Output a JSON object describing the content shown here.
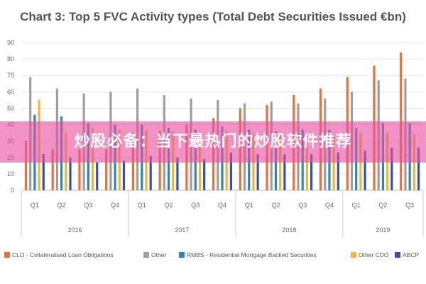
{
  "chart_data": {
    "type": "bar",
    "title": "Chart 3: Top 5 FVC Activity types (Total Debt Securities Issued €bn)",
    "ylim": [
      0,
      90
    ],
    "yticks": [
      0,
      10,
      20,
      30,
      40,
      50,
      60,
      70,
      80,
      90
    ],
    "categories": [
      "Q1",
      "Q2",
      "Q3",
      "Q4",
      "Q1",
      "Q2",
      "Q3",
      "Q4",
      "Q1",
      "Q2",
      "Q3",
      "Q4",
      "Q1",
      "Q2",
      "Q3"
    ],
    "years": [
      {
        "label": "2016"
      },
      {
        "label": "2017"
      },
      {
        "label": "2018"
      },
      {
        "label": "2019"
      }
    ],
    "grid": true,
    "legend_position": "bottom",
    "series": [
      {
        "name": "CLO - Collateralised Loan Obligations",
        "color": "#E8703A",
        "values": [
          30,
          25,
          25,
          25,
          35,
          36,
          40,
          44,
          50,
          52,
          58,
          62,
          69,
          76,
          84
        ]
      },
      {
        "name": "Other",
        "color": "#9E9E9E",
        "values": [
          69,
          62,
          59,
          60,
          62,
          58,
          56,
          55,
          53,
          54,
          53,
          56,
          60,
          67,
          68
        ]
      },
      {
        "name": "RMBS - Residential Mortgage Backed Securities",
        "color": "#2E86AB",
        "values": [
          46,
          45,
          41,
          40,
          40,
          38,
          37,
          39,
          37,
          36,
          37,
          37,
          38,
          41,
          41
        ]
      },
      {
        "name": "Other CDO",
        "color": "#F2B632",
        "values": [
          55,
          35,
          38,
          37,
          37,
          36,
          35,
          36,
          34,
          34,
          33,
          33,
          35,
          35,
          34
        ]
      },
      {
        "name": "ABCP",
        "color": "#3A4FA3",
        "values": [
          22,
          20,
          17,
          18,
          21,
          20,
          19,
          23,
          22,
          22,
          22,
          23,
          24,
          26,
          26
        ]
      }
    ]
  },
  "overlay": {
    "banner_text": "炒股必备：当下最热门的炒股软件推荐"
  }
}
